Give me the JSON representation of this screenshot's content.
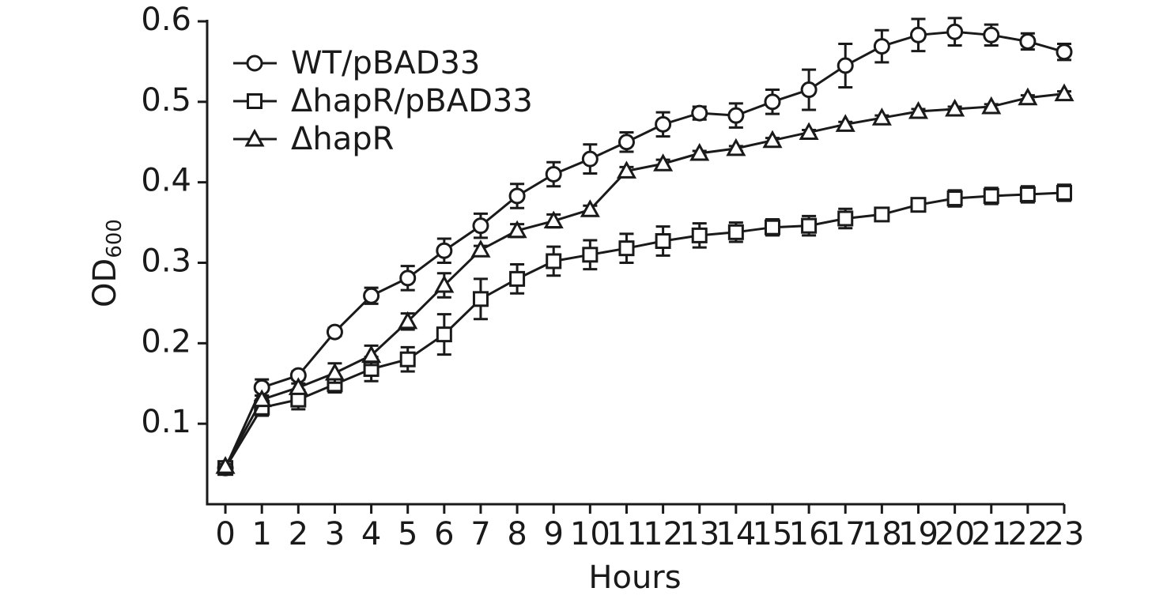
{
  "chart_data": {
    "type": "line",
    "xlabel": "Hours",
    "ylabel": "OD",
    "ylabel_subscript": "600",
    "x": [
      0,
      1,
      2,
      3,
      4,
      5,
      6,
      7,
      8,
      9,
      10,
      11,
      12,
      13,
      14,
      15,
      16,
      17,
      18,
      19,
      20,
      21,
      22,
      23
    ],
    "xlim": [
      -0.5,
      23
    ],
    "xticks": [
      0,
      1,
      2,
      3,
      4,
      5,
      6,
      7,
      8,
      9,
      10,
      11,
      12,
      13,
      14,
      15,
      16,
      17,
      18,
      19,
      20,
      21,
      22,
      23
    ],
    "ylim": [
      0,
      0.6
    ],
    "yticks": [
      0.1,
      0.2,
      0.3,
      0.4,
      0.5,
      0.6
    ],
    "grid": false,
    "legend": "upper left",
    "series": [
      {
        "name": "WT/pBAD33",
        "color": "#1a1a1a",
        "marker": "circle",
        "values": [
          0.045,
          0.145,
          0.16,
          0.214,
          0.259,
          0.281,
          0.315,
          0.346,
          0.383,
          0.41,
          0.429,
          0.45,
          0.472,
          0.486,
          0.483,
          0.5,
          0.515,
          0.545,
          0.569,
          0.583,
          0.587,
          0.583,
          0.575,
          0.562
        ],
        "errors": [
          0.003,
          0.01,
          0.005,
          0.005,
          0.01,
          0.015,
          0.015,
          0.015,
          0.015,
          0.015,
          0.018,
          0.012,
          0.015,
          0.008,
          0.015,
          0.015,
          0.025,
          0.027,
          0.02,
          0.02,
          0.017,
          0.013,
          0.01,
          0.01
        ]
      },
      {
        "name": "ΔhapR/pBAD33",
        "color": "#1a1a1a",
        "marker": "square",
        "values": [
          0.045,
          0.12,
          0.13,
          0.149,
          0.168,
          0.18,
          0.211,
          0.255,
          0.28,
          0.302,
          0.31,
          0.318,
          0.327,
          0.334,
          0.338,
          0.344,
          0.346,
          0.355,
          0.36,
          0.372,
          0.38,
          0.383,
          0.385,
          0.387
        ],
        "errors": [
          0.003,
          0.01,
          0.012,
          0.01,
          0.015,
          0.015,
          0.025,
          0.025,
          0.018,
          0.018,
          0.018,
          0.018,
          0.018,
          0.015,
          0.012,
          0.01,
          0.012,
          0.012,
          0.008,
          0.008,
          0.01,
          0.01,
          0.01,
          0.01
        ]
      },
      {
        "name": "ΔhapR",
        "color": "#1a1a1a",
        "marker": "triangle",
        "values": [
          0.047,
          0.13,
          0.145,
          0.163,
          0.185,
          0.227,
          0.272,
          0.316,
          0.34,
          0.352,
          0.366,
          0.414,
          0.423,
          0.436,
          0.442,
          0.452,
          0.462,
          0.472,
          0.48,
          0.488,
          0.491,
          0.494,
          0.505,
          0.51
        ],
        "errors": [
          0.003,
          0.005,
          0.005,
          0.012,
          0.012,
          0.01,
          0.015,
          0.005,
          0.008,
          0.008,
          0.005,
          0.005,
          0.005,
          0.003,
          0.003,
          0.003,
          0.003,
          0.003,
          0.003,
          0.003,
          0.003,
          0.003,
          0.003,
          0.003
        ]
      }
    ]
  }
}
